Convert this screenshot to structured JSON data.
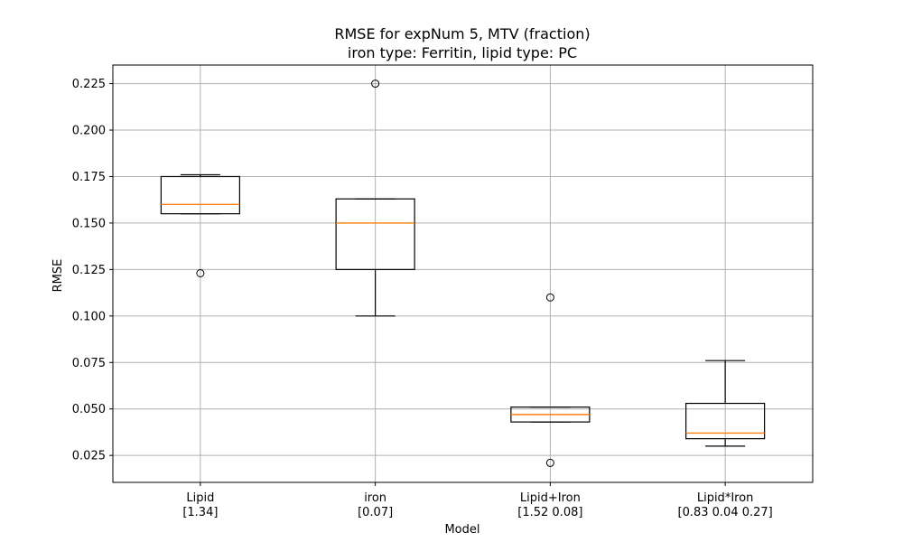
{
  "chart_data": {
    "type": "boxplot",
    "title": "RMSE for expNum 5, MTV (fraction)",
    "subtitle": "iron type: Ferritin, lipid type: PC",
    "xlabel": "Model",
    "ylabel": "RMSE",
    "ylim": [
      0.0105,
      0.235
    ],
    "yticks": [
      "0.025",
      "0.050",
      "0.075",
      "0.100",
      "0.125",
      "0.150",
      "0.175",
      "0.200",
      "0.225"
    ],
    "grid": true,
    "categories": [
      {
        "label": "Lipid",
        "sublabel": "[1.34]"
      },
      {
        "label": "iron",
        "sublabel": "[0.07]"
      },
      {
        "label": "Lipid+Iron",
        "sublabel": "[1.52 0.08]"
      },
      {
        "label": "Lipid*Iron",
        "sublabel": "[0.83 0.04 0.27]"
      }
    ],
    "boxes": [
      {
        "whisker_low": 0.155,
        "q1": 0.155,
        "median": 0.16,
        "q3": 0.175,
        "whisker_high": 0.176,
        "outliers": [
          0.123
        ]
      },
      {
        "whisker_low": 0.1,
        "q1": 0.125,
        "median": 0.15,
        "q3": 0.163,
        "whisker_high": 0.163,
        "outliers": [
          0.225
        ]
      },
      {
        "whisker_low": 0.043,
        "q1": 0.043,
        "median": 0.047,
        "q3": 0.051,
        "whisker_high": 0.051,
        "outliers": [
          0.11,
          0.021
        ]
      },
      {
        "whisker_low": 0.03,
        "q1": 0.034,
        "median": 0.037,
        "q3": 0.053,
        "whisker_high": 0.076,
        "outliers": []
      }
    ],
    "colors": {
      "box": "#000000",
      "median": "#ff7f0e",
      "grid": "#b0b0b0"
    }
  }
}
